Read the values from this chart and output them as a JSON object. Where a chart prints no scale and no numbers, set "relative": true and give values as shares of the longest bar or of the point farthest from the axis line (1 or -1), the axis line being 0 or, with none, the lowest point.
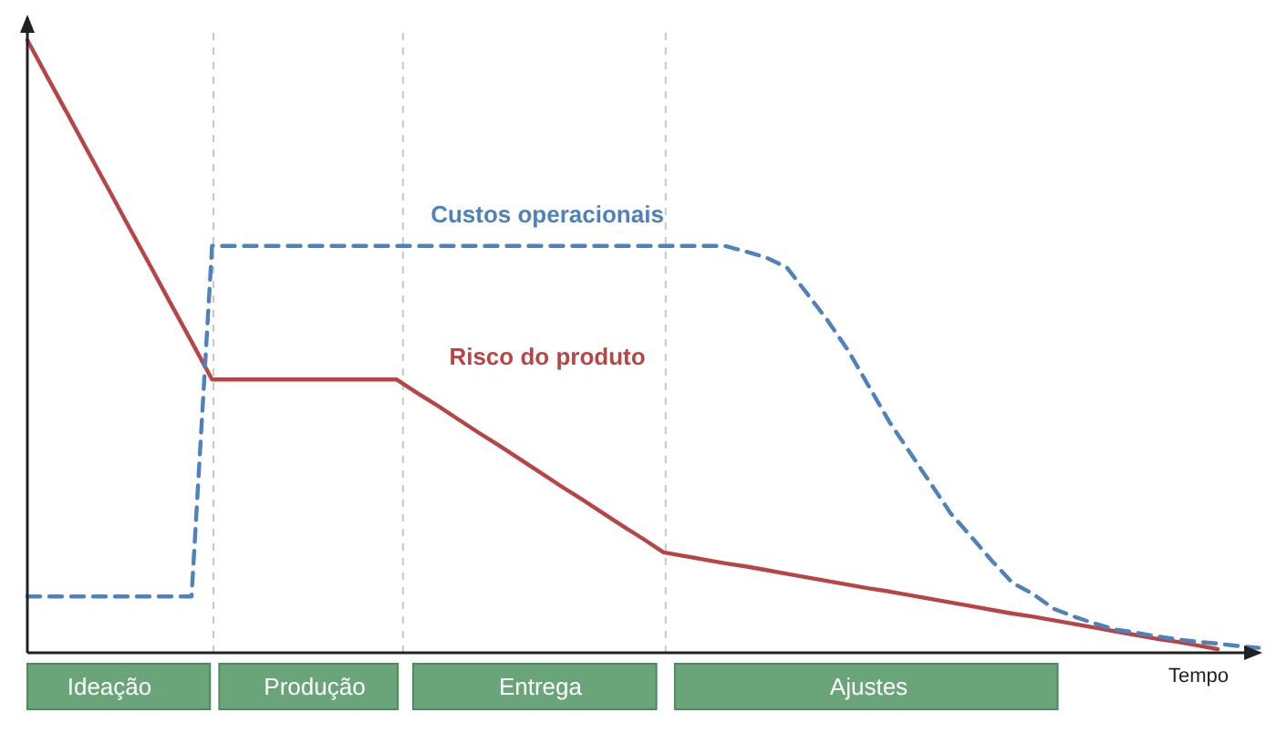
{
  "chart_data": {
    "type": "line",
    "relative": true,
    "xlabel": "Tempo",
    "categories": [
      null,
      null,
      null,
      null,
      "Ideação",
      null,
      null,
      null,
      null,
      null,
      null,
      null,
      null,
      null,
      "Produção",
      null,
      null,
      null,
      null,
      null,
      null,
      null,
      null,
      null,
      null,
      "Entrega",
      null,
      null,
      null,
      null,
      null,
      null,
      null,
      null,
      null,
      null,
      null,
      null,
      null,
      null,
      null,
      "Ajustes",
      null,
      null,
      null,
      null,
      null,
      null,
      null,
      null,
      null,
      null,
      null,
      null,
      null,
      null,
      null,
      null,
      null,
      null,
      null
    ],
    "series": [
      {
        "name": "Risco do produto",
        "color": "#b84545",
        "line_style": "solid",
        "values": [
          1,
          0.938,
          0.877,
          0.815,
          0.754,
          0.692,
          0.631,
          0.569,
          0.508,
          0.446,
          0.446,
          0.446,
          0.446,
          0.446,
          0.446,
          0.446,
          0.446,
          0.446,
          0.446,
          0.424,
          0.403,
          0.381,
          0.359,
          0.338,
          0.316,
          0.294,
          0.272,
          0.251,
          0.229,
          0.207,
          0.186,
          0.164,
          0.158,
          0.152,
          0.146,
          0.141,
          0.135,
          0.129,
          0.123,
          0.117,
          0.111,
          0.105,
          0.1,
          0.094,
          0.088,
          0.082,
          0.076,
          0.07,
          0.064,
          0.059,
          0.053,
          0.047,
          0.041,
          0.035,
          0.029,
          0.023,
          0.018,
          0.012,
          0.006,
          null,
          null
        ]
      },
      {
        "name": "Custos operacionais",
        "color": "#4f81bd",
        "line_style": "dashed",
        "values": [
          0.092,
          0.092,
          0.092,
          0.092,
          0.092,
          0.092,
          0.092,
          0.092,
          0.092,
          0.664,
          0.664,
          0.664,
          0.664,
          0.664,
          0.664,
          0.664,
          0.664,
          0.664,
          0.664,
          0.664,
          0.664,
          0.664,
          0.664,
          0.664,
          0.664,
          0.664,
          0.664,
          0.664,
          0.664,
          0.664,
          0.664,
          0.664,
          0.664,
          0.664,
          0.664,
          0.655,
          0.645,
          0.629,
          0.586,
          0.542,
          0.493,
          0.435,
          0.377,
          0.327,
          0.277,
          0.227,
          0.189,
          0.15,
          0.114,
          0.096,
          0.072,
          0.059,
          0.048,
          0.038,
          0.033,
          0.027,
          0.022,
          0.018,
          0.015,
          0.011,
          0.008
        ]
      }
    ]
  }
}
